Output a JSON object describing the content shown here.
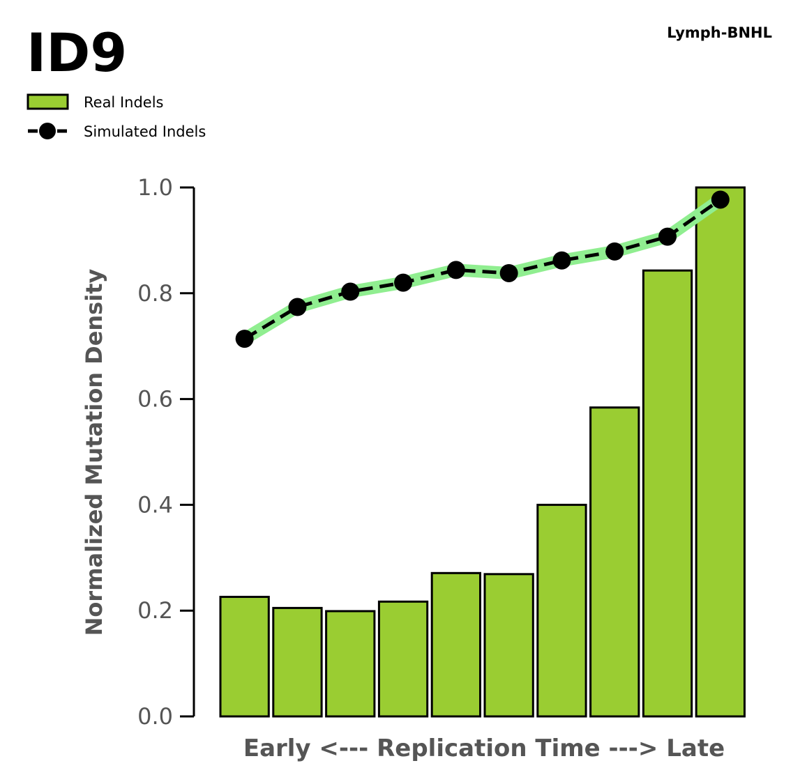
{
  "chart_data": {
    "type": "bar",
    "title": "ID9",
    "subtitle": "Lymph-BNHL",
    "xlabel": "Early <--- Replication Time ---> Late",
    "ylabel": "Normalized Mutation Density",
    "ylim": [
      0,
      1.0
    ],
    "yticks": [
      "0.0",
      "0.2",
      "0.4",
      "0.6",
      "0.8",
      "1.0"
    ],
    "ytick_values": [
      0,
      0.2,
      0.4,
      0.6,
      0.8,
      1.0
    ],
    "grid": false,
    "legend_position": "top-left",
    "series": [
      {
        "name": "Real Indels",
        "type": "bar",
        "color": "#9acd32",
        "values": [
          0.226,
          0.205,
          0.199,
          0.217,
          0.271,
          0.269,
          0.4,
          0.584,
          0.843,
          1.0
        ]
      },
      {
        "name": "Simulated Indels",
        "type": "line",
        "color": "#000000",
        "band_color": "#90ee90",
        "values": [
          0.714,
          0.774,
          0.803,
          0.82,
          0.844,
          0.838,
          0.862,
          0.879,
          0.907,
          0.977
        ]
      }
    ]
  }
}
